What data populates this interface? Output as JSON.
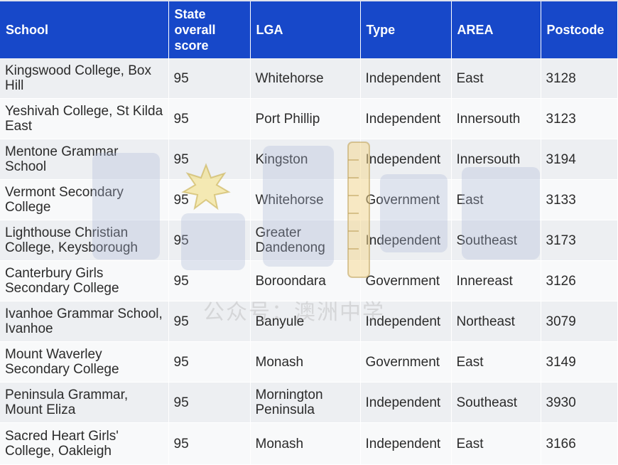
{
  "table": {
    "columns": [
      "School",
      "State overall score",
      "LGA",
      "Type",
      "AREA",
      "Postcode"
    ],
    "rows": [
      [
        "Kingswood College, Box Hill",
        "95",
        "Whitehorse",
        "Independent",
        "East",
        "3128"
      ],
      [
        "Yeshivah College, St Kilda East",
        "95",
        "Port Phillip",
        "Independent",
        "Innersouth",
        "3123"
      ],
      [
        "Mentone Grammar School",
        "95",
        "Kingston",
        "Independent",
        "Innersouth",
        "3194"
      ],
      [
        "Vermont Secondary College",
        "95",
        "Whitehorse",
        "Government",
        "East",
        "3133"
      ],
      [
        "Lighthouse Christian College, Keysborough",
        "95",
        "Greater Dandenong",
        "Independent",
        "Southeast",
        "3173"
      ],
      [
        "Canterbury Girls Secondary College",
        "95",
        "Boroondara",
        "Government",
        "Innereast",
        "3126"
      ],
      [
        "Ivanhoe Grammar School, Ivanhoe",
        "95",
        "Banyule",
        "Independent",
        "Northeast",
        "3079"
      ],
      [
        "Mount Waverley Secondary College",
        "95",
        "Monash",
        "Government",
        "East",
        "3149"
      ],
      [
        "Peninsula Grammar, Mount Eliza",
        "95",
        "Mornington Peninsula",
        "Independent",
        "Southeast",
        "3930"
      ],
      [
        "Sacred Heart Girls' College, Oakleigh",
        "95",
        "Monash",
        "Independent",
        "East",
        "3166"
      ]
    ]
  },
  "watermark": {
    "caption": "公众号：澳洲中学"
  }
}
